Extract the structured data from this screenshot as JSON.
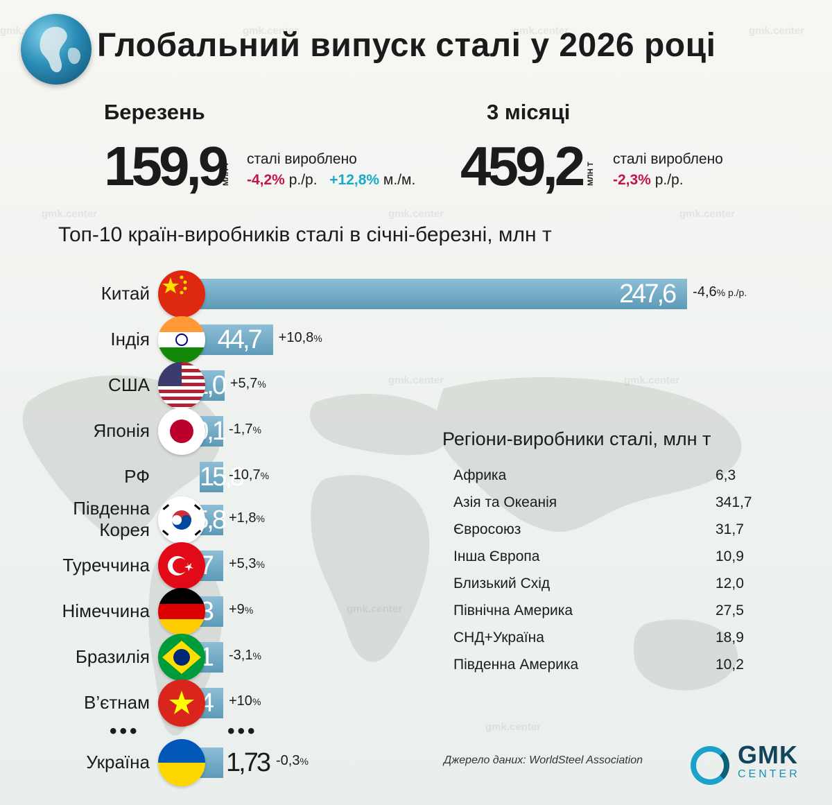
{
  "title": "Глобальний випуск сталі у 2026 році",
  "watermark": "gmk.center",
  "kpis": {
    "march": {
      "label": "Березень",
      "value": "159,9",
      "unit": "МЛН Т",
      "text": "сталі вироблено",
      "yoy": "-4,2%",
      "yoy_suffix": "р./р.",
      "mom": "+12,8%",
      "mom_suffix": "м./м."
    },
    "three_months": {
      "label": "3 місяці",
      "value": "459,2",
      "unit": "МЛН Т",
      "text": "сталі вироблено",
      "yoy": "-2,3%",
      "yoy_suffix": "р./р."
    }
  },
  "section_title": "Топ-10 країн-виробників сталі в січні-березні, млн т",
  "chart_data": {
    "type": "bar",
    "title": "Топ-10 країн-виробників сталі в січні-березні, млн т",
    "categories": [
      "Китай",
      "Індія",
      "США",
      "Японія",
      "РФ",
      "Південна Корея",
      "Туреччина",
      "Німеччина",
      "Бразилія",
      "В’єтнам",
      "Україна"
    ],
    "labels": [
      "247,6",
      "44,7",
      "21,0",
      "20,1",
      "15,8",
      "15,8",
      "9,7",
      "9,3",
      "8,1",
      "6,4",
      "1,73"
    ],
    "values": [
      247.6,
      44.7,
      21.0,
      20.1,
      15.8,
      15.8,
      9.7,
      9.3,
      8.1,
      6.4,
      1.73
    ],
    "changes": [
      "-4,6",
      "+10,8",
      "+5,7",
      "-1,7",
      "-10,7",
      "+1,8",
      "+5,3",
      "+9",
      "-3,1",
      "+10",
      "-0,3"
    ],
    "china_suffix": "% р./р.",
    "percent_sign": "%",
    "ellipsis": "•••"
  },
  "regions": {
    "title": "Регіони-виробники сталі, млн т",
    "rows": [
      {
        "name": "Африка",
        "value": "6,3"
      },
      {
        "name": "Азія та Океанія",
        "value": "341,7"
      },
      {
        "name": "Євросоюз",
        "value": "31,7"
      },
      {
        "name": "Інша Європа",
        "value": "10,9"
      },
      {
        "name": "Близький Схід",
        "value": "12,0"
      },
      {
        "name": "Північна Америка",
        "value": "27,5"
      },
      {
        "name": "СНД+Україна",
        "value": "18,9"
      },
      {
        "name": "Південна Америка",
        "value": "10,2"
      }
    ]
  },
  "source": "Джерело даних: WorldSteel Association",
  "logo": {
    "name": "GMK",
    "sub": "CENTER"
  },
  "colors": {
    "bar": "#6ea7c2",
    "negative": "#c4134f",
    "positive": "#1aa9c9",
    "logo": "#14445a"
  }
}
